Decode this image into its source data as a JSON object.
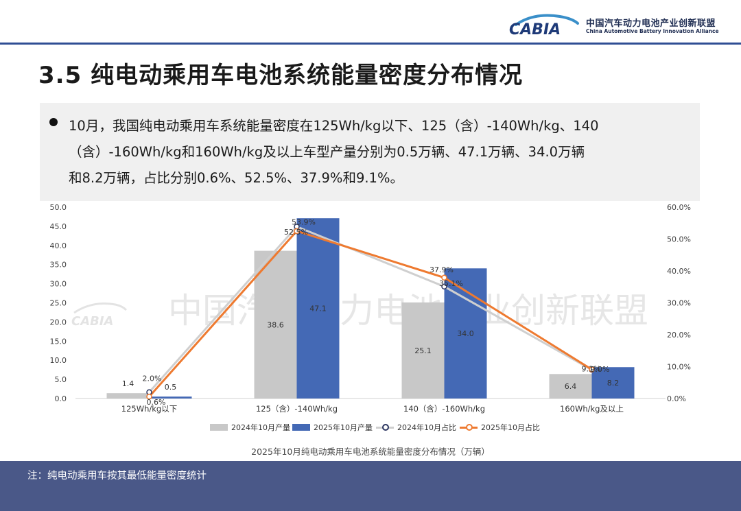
{
  "header": {
    "logo_text": "CABIA",
    "org_cn": "中国汽车动力电池产业创新联盟",
    "org_en": "China Automotive Battery Innovation Alliance"
  },
  "title": "3.5 纯电动乘用车电池系统能量密度分布情况",
  "bullet": "10月，我国纯电动乘用车系统能量密度在125Wh/kg以下、125（含）-140Wh/kg、140\n（含）-160Wh/kg和160Wh/kg及以上车型产量分别为0.5万辆、47.1万辆、34.0万辆\n和8.2万辆，占比分别0.6%、52.5%、37.9%和9.1%。",
  "watermark": "中国汽车动力电池产业创新联盟",
  "watermark_logo": "CABIA",
  "caption": "2025年10月纯电动乘用车电池系统能量密度分布情况（万辆）",
  "footnote": "注：纯电动乘用车按其最低能量密度统计",
  "colors": {
    "bar_2024": "#c8c8c8",
    "bar_2025": "#4469b5",
    "line_2024": "#cfcfcf",
    "line_2024_marker": "#2b3560",
    "line_2025": "#ee7a30",
    "footer": "#4a5888",
    "accent": "#2f4e94"
  },
  "chart_data": {
    "type": "bar",
    "categories": [
      "125Wh/kg以下",
      "125（含）-140Wh/kg",
      "140（含）-160Wh/kg",
      "160Wh/kg及以上"
    ],
    "y_left": {
      "min": 0,
      "max": 50,
      "step": 5,
      "format": "0.0"
    },
    "y_right": {
      "min": 0,
      "max": 60,
      "step": 10,
      "format": "0.0%"
    },
    "series": [
      {
        "name": "2024年10月产量",
        "type": "bar",
        "axis": "left",
        "values": [
          1.4,
          38.6,
          25.1,
          6.4
        ],
        "labels": [
          "1.4",
          "38.6",
          "25.1",
          "6.4"
        ]
      },
      {
        "name": "2025年10月产量",
        "type": "bar",
        "axis": "left",
        "values": [
          0.5,
          47.1,
          34.0,
          8.2
        ],
        "labels": [
          "0.5",
          "47.1",
          "34.0",
          "8.2"
        ]
      },
      {
        "name": "2024年10月占比",
        "type": "line",
        "axis": "right",
        "values": [
          2.0,
          53.9,
          35.1,
          9.0
        ],
        "labels": [
          "2.0%",
          "53.9%",
          "35.1%",
          "9.0%"
        ]
      },
      {
        "name": "2025年10月占比",
        "type": "line",
        "axis": "right",
        "values": [
          0.6,
          52.5,
          37.9,
          9.1
        ],
        "labels": [
          "0.6%",
          "52.5%",
          "37.9%",
          "9.1%"
        ]
      }
    ],
    "grid": false,
    "legend": "bottom"
  }
}
